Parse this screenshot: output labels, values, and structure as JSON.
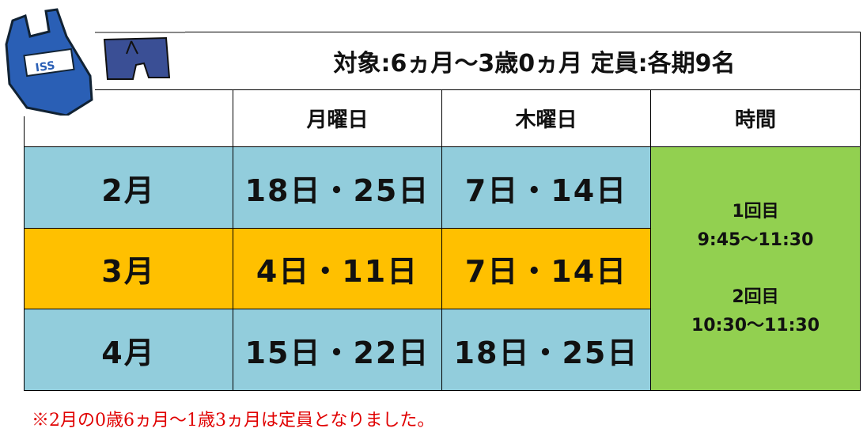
{
  "title": "対象:6ヵ月〜3歳0ヵ月 定員:各期9名",
  "headers": [
    "月曜日",
    "木曜日",
    "時間"
  ],
  "rows": [
    {
      "month": "2月",
      "monday": "18日・25日",
      "thursday": "7日・14日",
      "color": "#92CDDC"
    },
    {
      "month": "3月",
      "monday": "4日・11日",
      "thursday": "7日・14日",
      "color": "#FFC000"
    },
    {
      "month": "4月",
      "monday": "15日・22日",
      "thursday": "18日・25日",
      "color": "#92CDDC"
    }
  ],
  "time": {
    "s1_label": "1回目",
    "s1_time": "9:45〜11:30",
    "s2_label": "2回目",
    "s2_time": "10:30〜11:30",
    "color": "#92D050"
  },
  "note": "※2月の0歳6ヵ月〜1歳3ヵ月は定員となりました。",
  "icons": {
    "bag_logo": "ISS",
    "bag": "swim-bag-icon",
    "trunks": "swim-trunks-icon"
  }
}
